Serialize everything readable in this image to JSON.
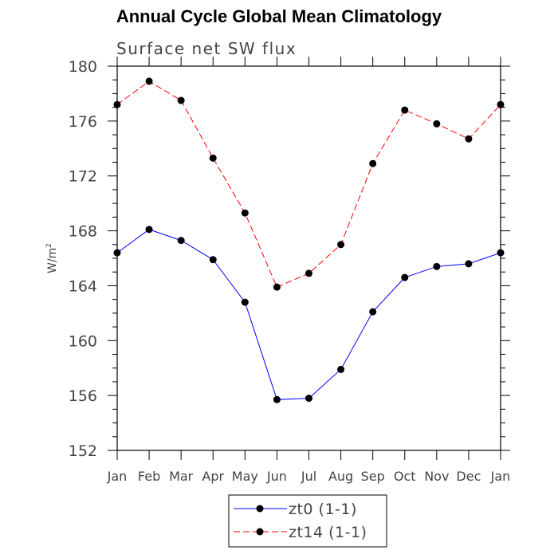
{
  "chart_data": {
    "type": "line",
    "title": "Annual Cycle Global Mean Climatology",
    "subtitle": "Surface net SW flux",
    "ylabel": "W/m",
    "ylabel_superscript": "2",
    "xlabel": "",
    "categories": [
      "Jan",
      "Feb",
      "Mar",
      "Apr",
      "May",
      "Jun",
      "Jul",
      "Aug",
      "Sep",
      "Oct",
      "Nov",
      "Dec",
      "Jan"
    ],
    "ylim": [
      152,
      180
    ],
    "yticks": [
      152,
      156,
      160,
      164,
      168,
      172,
      176,
      180
    ],
    "series": [
      {
        "name": "zt0 (1-1)",
        "color": "#0000ff",
        "dash": "solid",
        "values": [
          166.4,
          168.1,
          167.3,
          165.9,
          162.8,
          155.7,
          155.8,
          157.9,
          162.1,
          164.6,
          165.4,
          165.6,
          166.4
        ]
      },
      {
        "name": "zt14 (1-1)",
        "color": "#ff0000",
        "dash": "dashed",
        "values": [
          177.2,
          178.9,
          177.5,
          173.3,
          169.3,
          163.9,
          164.9,
          167.0,
          172.9,
          176.8,
          175.8,
          174.7,
          177.2
        ]
      }
    ],
    "grid": false,
    "legend_position": "bottom-center"
  }
}
